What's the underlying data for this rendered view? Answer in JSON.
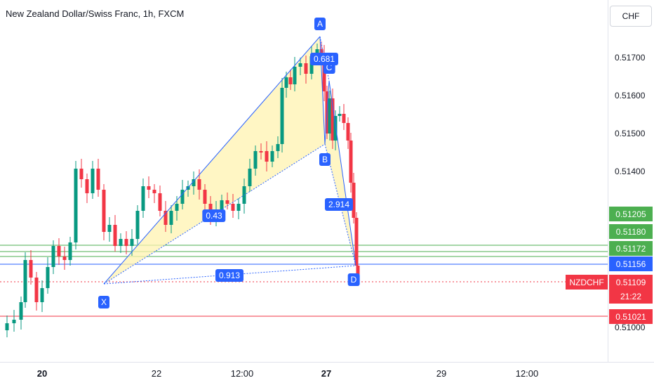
{
  "header": {
    "title": "New Zealand Dollar/Swiss Franc, 1h, FXCM"
  },
  "price_axis": {
    "currency_button": "CHF",
    "ticks": [
      "0.51700",
      "0.51600",
      "0.51500",
      "0.51400",
      "0.51000"
    ],
    "badges": [
      {
        "label": "0.51205",
        "color": "#4caf50"
      },
      {
        "label": "0.51180",
        "color": "#4caf50"
      },
      {
        "label": "0.51172",
        "color": "#4caf50"
      },
      {
        "label": "0.51156",
        "color": "#2962ff"
      },
      {
        "label": "0.51109",
        "color": "#f23645"
      },
      {
        "label": "0.51021",
        "color": "#f23645"
      }
    ],
    "countdown": "21:22"
  },
  "symbol_tag": "NZDCHF",
  "time_axis": {
    "ticks": [
      {
        "label": "20",
        "bold": true
      },
      {
        "label": "22",
        "bold": false
      },
      {
        "label": "12:00",
        "bold": false
      },
      {
        "label": "27",
        "bold": true
      },
      {
        "label": "29",
        "bold": false
      },
      {
        "label": "12:00",
        "bold": false
      }
    ]
  },
  "pattern": {
    "points": [
      "X",
      "A",
      "B",
      "C",
      "D"
    ],
    "ratios": [
      "0.913",
      "2.914",
      "0.43",
      "0.681"
    ]
  },
  "colors": {
    "up_candle": "#089981",
    "down_candle": "#f23645",
    "pattern_line": "#2962ff",
    "pattern_fill": "#fff3b0"
  }
}
